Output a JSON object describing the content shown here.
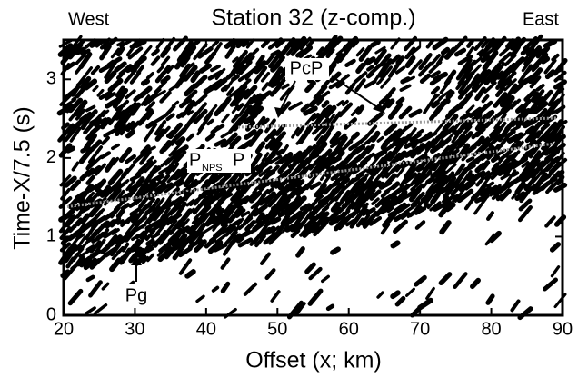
{
  "chart_data": {
    "type": "seismic-section",
    "title": "Station 32 (z-comp.)",
    "xlabel": "Offset (x; km)",
    "ylabel": "Time-X/7.5 (s)",
    "xlim": [
      20,
      90
    ],
    "xticks": [
      20,
      30,
      40,
      50,
      60,
      70,
      80,
      90
    ],
    "ylim": [
      0,
      3.5
    ],
    "yticks": [
      0,
      1,
      2,
      3
    ],
    "annotations": {
      "west": "West",
      "east": "East",
      "pg": "Pg",
      "pcp": "PcP",
      "pnps": [
        "P",
        "NPS",
        "P"
      ]
    }
  }
}
